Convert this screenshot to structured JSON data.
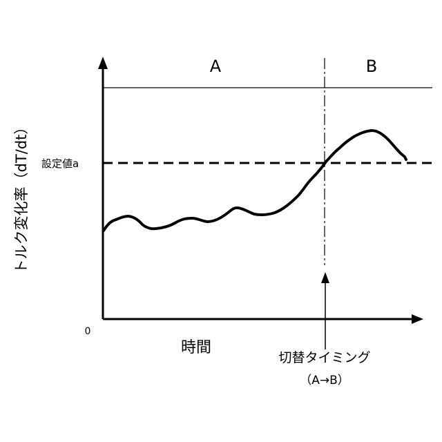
{
  "region_a_label": "A",
  "region_b_label": "B",
  "y_axis_label": "トルク変化率（dT/dt）",
  "x_axis_label": "時間",
  "origin_label": "0",
  "threshold_label": "設定値a",
  "switch_label": "切替タイミング",
  "switch_sublabel": "（A→B）"
}
